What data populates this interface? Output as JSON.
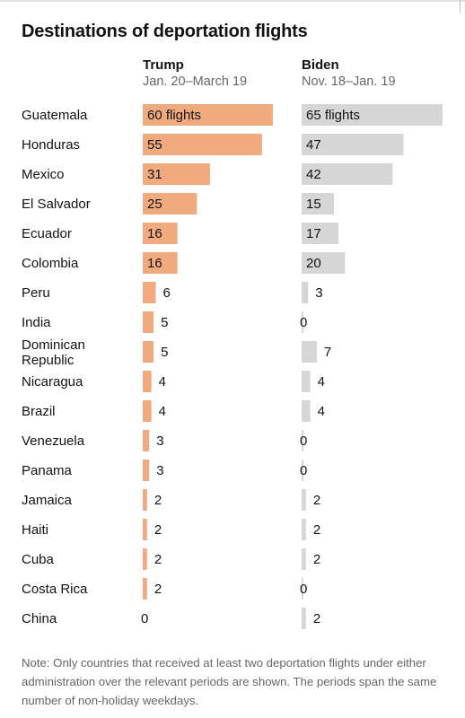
{
  "title": "Destinations of deportation flights",
  "note": "Note: Only countries that received at least two deportation flights under either administration over the relevant periods are shown. The periods span the same number of non-holiday weekdays.",
  "colors": {
    "trump": "#f1aa7e",
    "biden": "#d6d6d6",
    "text": "#121212"
  },
  "chart_data": {
    "type": "bar",
    "title": "Destinations of deportation flights",
    "unit_label": "flights",
    "categories": [
      "Guatemala",
      "Honduras",
      "Mexico",
      "El Salvador",
      "Ecuador",
      "Colombia",
      "Peru",
      "India",
      "Dominican Republic",
      "Nicaragua",
      "Brazil",
      "Venezuela",
      "Panama",
      "Jamaica",
      "Haiti",
      "Cuba",
      "Costa Rica",
      "China"
    ],
    "series": [
      {
        "name": "Trump",
        "period": "Jan. 20–March 19",
        "color": "#f1aa7e",
        "values": [
          60,
          55,
          31,
          25,
          16,
          16,
          6,
          5,
          5,
          4,
          4,
          3,
          3,
          2,
          2,
          2,
          2,
          0
        ]
      },
      {
        "name": "Biden",
        "period": "Nov. 18–Jan. 19",
        "color": "#d6d6d6",
        "values": [
          65,
          47,
          42,
          15,
          17,
          20,
          3,
          0,
          7,
          4,
          4,
          0,
          0,
          2,
          2,
          2,
          0,
          2
        ]
      }
    ],
    "xlim": [
      0,
      65
    ]
  }
}
